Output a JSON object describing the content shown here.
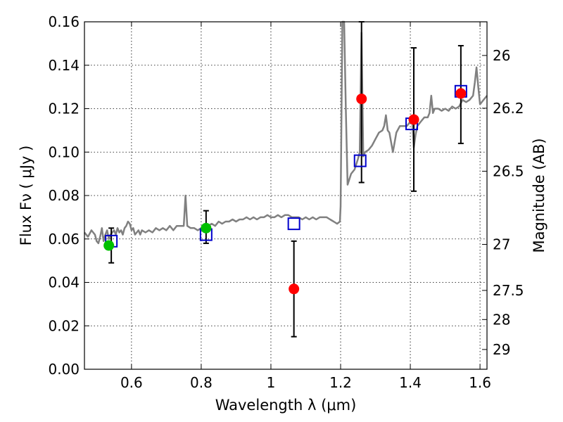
{
  "chart_data": {
    "type": "scatter",
    "title": "",
    "xlabel": "Wavelength  λ (μm)",
    "ylabel": "Flux  Fν  ( μJy )",
    "ylabel_right": "Magnitude (AB)",
    "xlim": [
      0.465,
      1.62
    ],
    "ylim": [
      0.0,
      0.16
    ],
    "grid": true,
    "x_ticks": [
      0.6,
      0.8,
      1.0,
      1.2,
      1.4,
      1.6
    ],
    "x_tick_labels": [
      "0.6",
      "0.8",
      "1",
      "1.2",
      "1.4",
      "1.6"
    ],
    "y_ticks": [
      0.0,
      0.02,
      0.04,
      0.06,
      0.08,
      0.1,
      0.12,
      0.14,
      0.16
    ],
    "y_tick_labels": [
      "0.00",
      "0.02",
      "0.04",
      "0.06",
      "0.08",
      "0.10",
      "0.12",
      "0.14",
      "0.16"
    ],
    "right_ticks": [
      {
        "label": "26",
        "flux": 0.1445
      },
      {
        "label": "26.2",
        "flux": 0.1202
      },
      {
        "label": "26.5",
        "flux": 0.0912
      },
      {
        "label": "27",
        "flux": 0.0575
      },
      {
        "label": "27.5",
        "flux": 0.0363
      },
      {
        "label": "28",
        "flux": 0.0229
      },
      {
        "label": "29",
        "flux": 0.0091
      }
    ],
    "series": [
      {
        "kind": "line",
        "color": "#808080",
        "points": [
          [
            0.465,
            0.063
          ],
          [
            0.475,
            0.061
          ],
          [
            0.485,
            0.064
          ],
          [
            0.495,
            0.062
          ],
          [
            0.5,
            0.059
          ],
          [
            0.505,
            0.058
          ],
          [
            0.51,
            0.061
          ],
          [
            0.515,
            0.065
          ],
          [
            0.52,
            0.059
          ],
          [
            0.525,
            0.062
          ],
          [
            0.53,
            0.064
          ],
          [
            0.535,
            0.06
          ],
          [
            0.54,
            0.062
          ],
          [
            0.545,
            0.063
          ],
          [
            0.55,
            0.064
          ],
          [
            0.555,
            0.062
          ],
          [
            0.56,
            0.065
          ],
          [
            0.565,
            0.063
          ],
          [
            0.57,
            0.064
          ],
          [
            0.575,
            0.062
          ],
          [
            0.58,
            0.065
          ],
          [
            0.585,
            0.066
          ],
          [
            0.59,
            0.068
          ],
          [
            0.595,
            0.067
          ],
          [
            0.6,
            0.064
          ],
          [
            0.605,
            0.065
          ],
          [
            0.61,
            0.062
          ],
          [
            0.615,
            0.063
          ],
          [
            0.62,
            0.064
          ],
          [
            0.625,
            0.062
          ],
          [
            0.63,
            0.064
          ],
          [
            0.64,
            0.063
          ],
          [
            0.65,
            0.064
          ],
          [
            0.66,
            0.063
          ],
          [
            0.67,
            0.065
          ],
          [
            0.68,
            0.064
          ],
          [
            0.69,
            0.065
          ],
          [
            0.7,
            0.064
          ],
          [
            0.71,
            0.066
          ],
          [
            0.72,
            0.064
          ],
          [
            0.73,
            0.066
          ],
          [
            0.74,
            0.066
          ],
          [
            0.75,
            0.066
          ],
          [
            0.755,
            0.08
          ],
          [
            0.76,
            0.066
          ],
          [
            0.77,
            0.065
          ],
          [
            0.78,
            0.065
          ],
          [
            0.79,
            0.064
          ],
          [
            0.8,
            0.065
          ],
          [
            0.81,
            0.066
          ],
          [
            0.82,
            0.066
          ],
          [
            0.83,
            0.067
          ],
          [
            0.84,
            0.066
          ],
          [
            0.85,
            0.068
          ],
          [
            0.86,
            0.067
          ],
          [
            0.87,
            0.068
          ],
          [
            0.88,
            0.068
          ],
          [
            0.89,
            0.069
          ],
          [
            0.9,
            0.068
          ],
          [
            0.91,
            0.069
          ],
          [
            0.92,
            0.069
          ],
          [
            0.93,
            0.07
          ],
          [
            0.94,
            0.069
          ],
          [
            0.95,
            0.07
          ],
          [
            0.96,
            0.069
          ],
          [
            0.97,
            0.07
          ],
          [
            0.98,
            0.07
          ],
          [
            0.99,
            0.071
          ],
          [
            1.0,
            0.07
          ],
          [
            1.01,
            0.07
          ],
          [
            1.02,
            0.071
          ],
          [
            1.03,
            0.07
          ],
          [
            1.04,
            0.071
          ],
          [
            1.05,
            0.071
          ],
          [
            1.06,
            0.07
          ],
          [
            1.07,
            0.07
          ],
          [
            1.08,
            0.07
          ],
          [
            1.09,
            0.069
          ],
          [
            1.1,
            0.07
          ],
          [
            1.11,
            0.069
          ],
          [
            1.12,
            0.07
          ],
          [
            1.13,
            0.069
          ],
          [
            1.14,
            0.07
          ],
          [
            1.15,
            0.07
          ],
          [
            1.16,
            0.07
          ],
          [
            1.17,
            0.069
          ],
          [
            1.18,
            0.068
          ],
          [
            1.19,
            0.067
          ],
          [
            1.198,
            0.068
          ],
          [
            1.2,
            0.075
          ],
          [
            1.205,
            0.16
          ],
          [
            1.21,
            0.16
          ],
          [
            1.215,
            0.12
          ],
          [
            1.22,
            0.085
          ],
          [
            1.23,
            0.09
          ],
          [
            1.24,
            0.092
          ],
          [
            1.25,
            0.097
          ],
          [
            1.255,
            0.1
          ],
          [
            1.26,
            0.155
          ],
          [
            1.265,
            0.098
          ],
          [
            1.27,
            0.1
          ],
          [
            1.28,
            0.101
          ],
          [
            1.29,
            0.103
          ],
          [
            1.3,
            0.106
          ],
          [
            1.31,
            0.109
          ],
          [
            1.32,
            0.11
          ],
          [
            1.325,
            0.112
          ],
          [
            1.33,
            0.117
          ],
          [
            1.335,
            0.11
          ],
          [
            1.34,
            0.109
          ],
          [
            1.35,
            0.1
          ],
          [
            1.36,
            0.109
          ],
          [
            1.37,
            0.112
          ],
          [
            1.38,
            0.112
          ],
          [
            1.39,
            0.112
          ],
          [
            1.4,
            0.114
          ],
          [
            1.405,
            0.116
          ],
          [
            1.41,
            0.102
          ],
          [
            1.415,
            0.108
          ],
          [
            1.42,
            0.112
          ],
          [
            1.43,
            0.114
          ],
          [
            1.44,
            0.116
          ],
          [
            1.45,
            0.116
          ],
          [
            1.455,
            0.118
          ],
          [
            1.46,
            0.126
          ],
          [
            1.465,
            0.118
          ],
          [
            1.47,
            0.12
          ],
          [
            1.48,
            0.12
          ],
          [
            1.49,
            0.119
          ],
          [
            1.5,
            0.12
          ],
          [
            1.51,
            0.119
          ],
          [
            1.52,
            0.121
          ],
          [
            1.53,
            0.12
          ],
          [
            1.54,
            0.121
          ],
          [
            1.55,
            0.124
          ],
          [
            1.56,
            0.123
          ],
          [
            1.57,
            0.124
          ],
          [
            1.58,
            0.126
          ],
          [
            1.585,
            0.132
          ],
          [
            1.59,
            0.139
          ],
          [
            1.595,
            0.13
          ],
          [
            1.6,
            0.122
          ],
          [
            1.61,
            0.124
          ],
          [
            1.62,
            0.126
          ]
        ]
      },
      {
        "kind": "errorbar",
        "color": "#000000",
        "bars": [
          {
            "x": 0.542,
            "y": 0.057,
            "lo": 0.049,
            "hi": 0.065
          },
          {
            "x": 0.814,
            "y": 0.065,
            "lo": 0.058,
            "hi": 0.073
          },
          {
            "x": 1.066,
            "y": 0.037,
            "lo": 0.015,
            "hi": 0.059
          },
          {
            "x": 1.26,
            "y": 0.125,
            "lo": 0.086,
            "hi": 0.16
          },
          {
            "x": 1.41,
            "y": 0.115,
            "lo": 0.082,
            "hi": 0.148
          },
          {
            "x": 1.545,
            "y": 0.127,
            "lo": 0.104,
            "hi": 0.149
          }
        ]
      },
      {
        "kind": "square",
        "color": "#0000cc",
        "points": [
          [
            0.542,
            0.059
          ],
          [
            0.814,
            0.062
          ],
          [
            1.066,
            0.067
          ],
          [
            1.256,
            0.096
          ],
          [
            1.404,
            0.113
          ],
          [
            1.545,
            0.128
          ]
        ]
      },
      {
        "kind": "circle",
        "color": "#00c000",
        "points": [
          [
            0.535,
            0.057
          ],
          [
            0.814,
            0.065
          ]
        ]
      },
      {
        "kind": "circle",
        "color": "#ff0000",
        "points": [
          [
            1.066,
            0.037
          ],
          [
            1.26,
            0.1245
          ],
          [
            1.41,
            0.115
          ],
          [
            1.545,
            0.127
          ]
        ]
      }
    ]
  }
}
